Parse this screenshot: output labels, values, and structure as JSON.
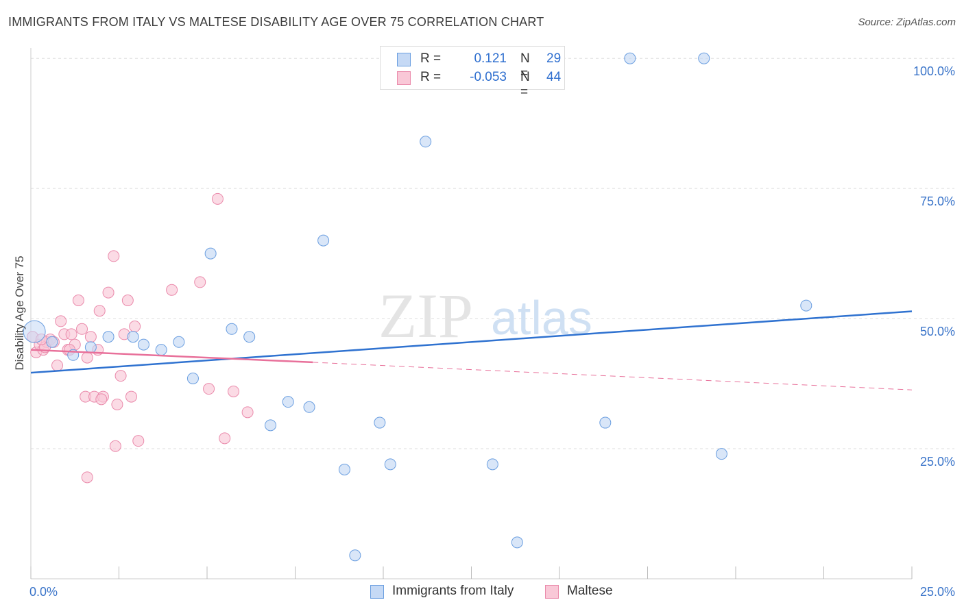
{
  "title": "IMMIGRANTS FROM ITALY VS MALTESE DISABILITY AGE OVER 75 CORRELATION CHART",
  "source": "Source: ZipAtlas.com",
  "watermark": {
    "zip": "ZIP",
    "atlas": "atlas"
  },
  "legend_top": {
    "rows": [
      {
        "r_label": "R =",
        "r_value": "0.121",
        "n_label": "N =",
        "n_value": "29"
      },
      {
        "r_label": "R =",
        "r_value": "-0.053",
        "n_label": "N =",
        "n_value": "44"
      }
    ]
  },
  "legend_bottom": [
    "Immigrants from Italy",
    "Maltese"
  ],
  "colors": {
    "italy_fill": "#c5d9f5",
    "italy_stroke": "#6a9ee0",
    "italy_line": "#2f72d0",
    "maltese_fill": "#f9c8d7",
    "maltese_stroke": "#ea8aab",
    "maltese_line": "#e8709a",
    "axis_text": "#3a74c9",
    "grid": "#dddddd"
  },
  "chart_data": {
    "type": "scatter",
    "title": "IMMIGRANTS FROM ITALY VS MALTESE DISABILITY AGE OVER 75 CORRELATION CHART",
    "xlabel": "",
    "ylabel": "Disability Age Over 75",
    "xlim": [
      0,
      25
    ],
    "ylim": [
      0,
      102
    ],
    "x_tick_labels": [
      "0.0%",
      "25.0%"
    ],
    "y_ticks": [
      25,
      50,
      75,
      100
    ],
    "y_tick_labels": [
      "25.0%",
      "50.0%",
      "75.0%",
      "100.0%"
    ],
    "grid": true,
    "legend_position": "top-center",
    "series": [
      {
        "name": "Immigrants from Italy",
        "r": 0.121,
        "n": 29,
        "trend": {
          "x": [
            0,
            25
          ],
          "y": [
            39.6,
            51.4
          ]
        },
        "points": [
          [
            0.1,
            47.5
          ],
          [
            1.2,
            43.0
          ],
          [
            1.7,
            44.5
          ],
          [
            2.2,
            46.5
          ],
          [
            2.9,
            46.5
          ],
          [
            3.2,
            45.0
          ],
          [
            3.7,
            44.0
          ],
          [
            4.2,
            45.5
          ],
          [
            4.6,
            38.5
          ],
          [
            5.1,
            62.5
          ],
          [
            5.7,
            48.0
          ],
          [
            6.2,
            46.5
          ],
          [
            6.8,
            29.5
          ],
          [
            7.3,
            34.0
          ],
          [
            7.9,
            33.0
          ],
          [
            8.3,
            65.0
          ],
          [
            8.9,
            21.0
          ],
          [
            9.2,
            4.5
          ],
          [
            9.9,
            30.0
          ],
          [
            10.2,
            22.0
          ],
          [
            11.2,
            84.0
          ],
          [
            13.1,
            22.0
          ],
          [
            13.8,
            7.0
          ],
          [
            16.3,
            30.0
          ],
          [
            17.0,
            100.0
          ],
          [
            19.1,
            100.0
          ],
          [
            19.6,
            24.0
          ],
          [
            22.0,
            52.5
          ],
          [
            0.6,
            45.5
          ]
        ]
      },
      {
        "name": "Maltese",
        "r": -0.053,
        "n": 44,
        "trend": {
          "x": [
            0,
            8.0,
            25
          ],
          "y": [
            44.0,
            41.6,
            36.3
          ],
          "solid_until": 8.0
        },
        "points": [
          [
            0.05,
            46.5
          ],
          [
            0.15,
            43.5
          ],
          [
            0.25,
            45.0
          ],
          [
            0.35,
            44.0
          ],
          [
            0.45,
            45.5
          ],
          [
            0.55,
            46.0
          ],
          [
            0.65,
            45.5
          ],
          [
            0.75,
            41.0
          ],
          [
            0.85,
            49.5
          ],
          [
            0.95,
            47.0
          ],
          [
            1.05,
            44.0
          ],
          [
            1.15,
            47.0
          ],
          [
            1.25,
            45.0
          ],
          [
            1.35,
            53.5
          ],
          [
            1.45,
            48.0
          ],
          [
            1.55,
            35.0
          ],
          [
            1.6,
            42.5
          ],
          [
            1.7,
            46.5
          ],
          [
            1.8,
            35.0
          ],
          [
            1.95,
            51.5
          ],
          [
            2.05,
            35.0
          ],
          [
            2.2,
            55.0
          ],
          [
            2.35,
            62.0
          ],
          [
            2.45,
            33.5
          ],
          [
            2.55,
            39.0
          ],
          [
            2.65,
            47.0
          ],
          [
            2.75,
            53.5
          ],
          [
            2.85,
            35.0
          ],
          [
            2.95,
            48.5
          ],
          [
            3.05,
            26.5
          ],
          [
            4.0,
            55.5
          ],
          [
            4.8,
            57.0
          ],
          [
            5.05,
            36.5
          ],
          [
            5.3,
            73.0
          ],
          [
            5.5,
            27.0
          ],
          [
            5.75,
            36.0
          ],
          [
            6.15,
            32.0
          ],
          [
            1.6,
            19.5
          ],
          [
            2.4,
            25.5
          ],
          [
            1.1,
            44.0
          ],
          [
            0.4,
            44.5
          ],
          [
            1.9,
            44.0
          ],
          [
            2.0,
            34.5
          ],
          [
            0.3,
            46.0
          ]
        ]
      }
    ]
  }
}
